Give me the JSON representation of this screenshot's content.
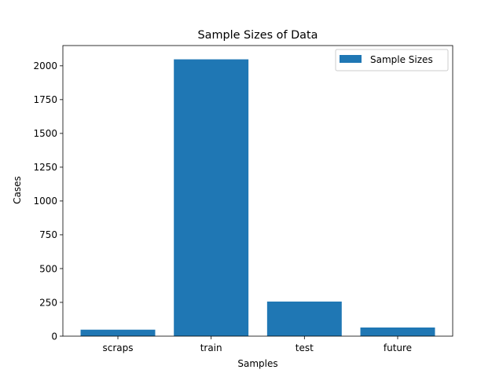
{
  "chart_data": {
    "type": "bar",
    "title": "Sample Sizes of Data",
    "xlabel": "Samples",
    "ylabel": "Cases",
    "categories": [
      "scraps",
      "train",
      "test",
      "future"
    ],
    "series": [
      {
        "name": "Sample Sizes",
        "values": [
          48,
          2048,
          256,
          64
        ],
        "color": "#1f77b4"
      }
    ],
    "ylim": [
      0,
      2150
    ],
    "yticks": [
      0,
      250,
      500,
      750,
      1000,
      1250,
      1500,
      1750,
      2000
    ],
    "grid": false,
    "legend": "top-right"
  }
}
